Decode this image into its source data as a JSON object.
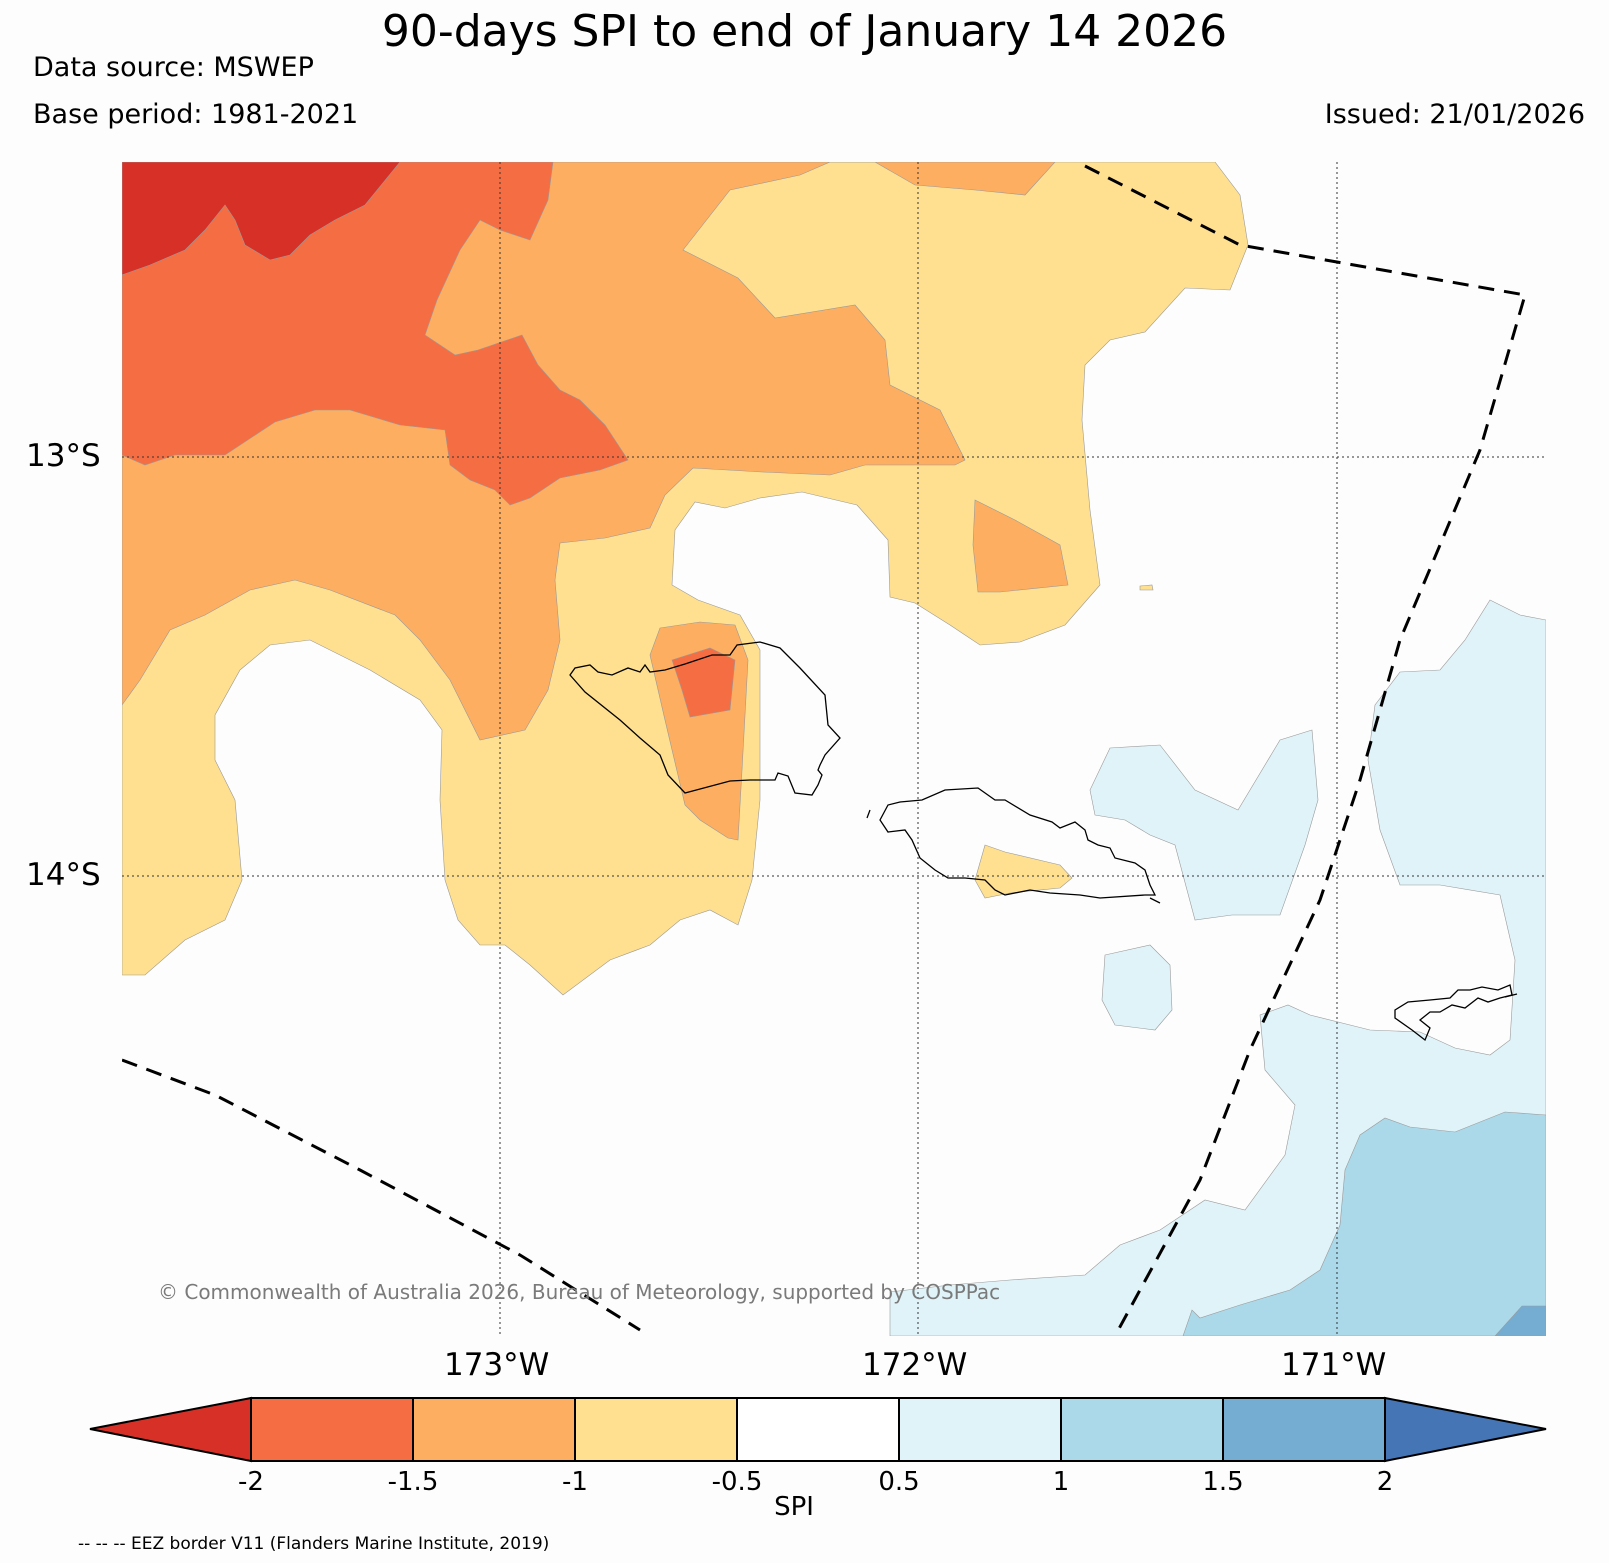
{
  "title": "90-days SPI to end of January 14 2026",
  "data_source": "Data source: MSWEP",
  "base_period": "Base period: 1981-2021",
  "issued": "Issued: 21/01/2026",
  "latitude_labels": [
    "13°S",
    "14°S"
  ],
  "longitude_labels": [
    "173°W",
    "172°W",
    "171°W"
  ],
  "copyright": "© Commonwealth of Australia 2026, Bureau of Meteorology, supported by COSPPac",
  "colorbar": {
    "label": "SPI",
    "ticks": [
      "-2",
      "-1.5",
      "-1",
      "-0.5",
      "0.5",
      "1",
      "1.5",
      "2"
    ],
    "colors": [
      "#d73027",
      "#f46d43",
      "#fdae61",
      "#fee090",
      "#ffffff",
      "#e0f3f8",
      "#abd9e9",
      "#74add1",
      "#4575b4"
    ]
  },
  "eez_note": "-- -- -- EEZ border V11 (Flanders Marine Institute, 2019)",
  "map_colors": {
    "very_dry": "#d73027",
    "dry": "#f46d43",
    "moderately_dry": "#fdae61",
    "slightly_dry": "#fee090",
    "near_normal": "#fdfdfd",
    "slightly_wet": "#e0f3f8",
    "moderately_wet": "#abd9e9",
    "wet": "#74add1"
  }
}
